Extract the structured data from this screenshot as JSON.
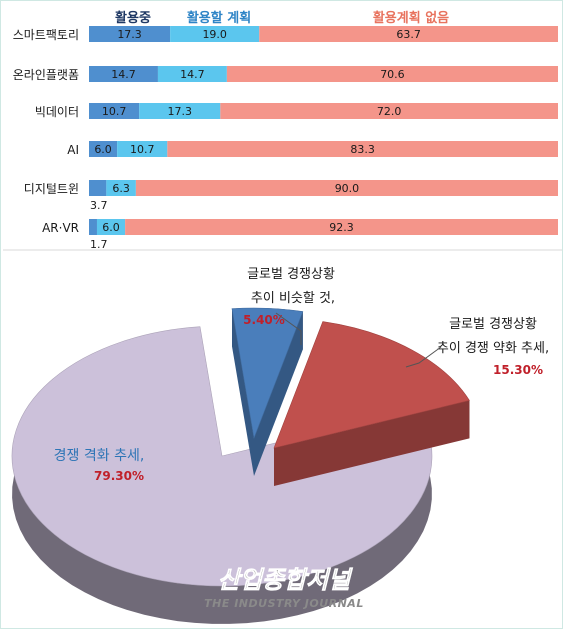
{
  "chart_data": [
    {
      "type": "bar",
      "stacked": true,
      "orientation": "horizontal",
      "categories": [
        "스마트팩토리",
        "온라인플랫폼",
        "빅데이터",
        "AI",
        "디지털트윈",
        "AR·VR"
      ],
      "series": [
        {
          "name": "활용중",
          "values": [
            17.3,
            14.7,
            10.7,
            6.0,
            3.7,
            1.7
          ],
          "color": "#4f8fcf"
        },
        {
          "name": "활용할 계획",
          "values": [
            19.0,
            14.7,
            17.3,
            10.7,
            6.3,
            6.0
          ],
          "color": "#5bc6ee"
        },
        {
          "name": "활용계획 없음",
          "values": [
            63.7,
            70.6,
            72.0,
            83.3,
            90.0,
            92.3
          ],
          "color": "#f4958a"
        }
      ],
      "legend_colors": [
        "#1f3864",
        "#2e84c6",
        "#e8735e"
      ],
      "xlim": [
        0,
        100
      ],
      "legend_position": "top",
      "grid": false
    },
    {
      "type": "pie",
      "style": "3d-exploded",
      "slices": [
        {
          "label_lines": [
            "글로벌 경쟁상황",
            "추이 비슷할 것,"
          ],
          "value": 5.4,
          "value_label": "5.40%",
          "color": "#4a7ebb"
        },
        {
          "label_lines": [
            "글로벌 경쟁상황",
            "추이 경쟁 약화 추세,"
          ],
          "value": 15.3,
          "value_label": "15.30%",
          "color": "#c0504d"
        },
        {
          "label_lines": [
            "경쟁 격화 추세,"
          ],
          "value": 79.3,
          "value_label": "79.30%",
          "color": "#ccc1da"
        }
      ],
      "label_color": "#1a1a1a",
      "value_color": "#c0202a",
      "big_label_color": "#2e75b6"
    }
  ],
  "watermark": {
    "korean": "산업종합저널",
    "english": "THE INDUSTRY JOURNAL"
  }
}
